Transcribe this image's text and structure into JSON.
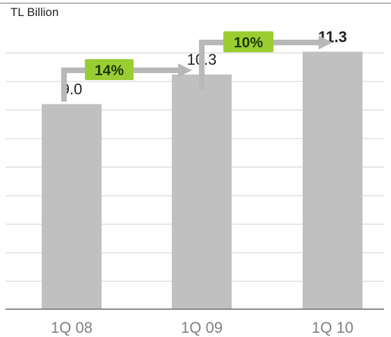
{
  "header": {
    "unit_label": "TL Billion"
  },
  "growth_labels": [
    {
      "from": "1Q 08",
      "to": "1Q 09",
      "text": "14%"
    },
    {
      "from": "1Q 09",
      "to": "1Q 10",
      "text": "10%"
    }
  ],
  "colors": {
    "bar": "#c0c0c0",
    "grid": "#cfcfcf",
    "axis": "#888888",
    "arrow": "#b8b8b8",
    "badge_fill": "#9acd32",
    "badge_text": "#1a3a00",
    "value_text": "#222222",
    "tick_text": "#808080"
  },
  "chart_data": {
    "type": "bar",
    "categories": [
      "1Q 08",
      "1Q 09",
      "1Q 10"
    ],
    "values": [
      9.0,
      10.3,
      11.3
    ],
    "value_labels": [
      "9.0",
      "10.3",
      "11.3"
    ],
    "bold_value_index": 2,
    "ylim": [
      0,
      12.5
    ],
    "grid": true,
    "title": "",
    "xlabel": "",
    "ylabel": ""
  }
}
